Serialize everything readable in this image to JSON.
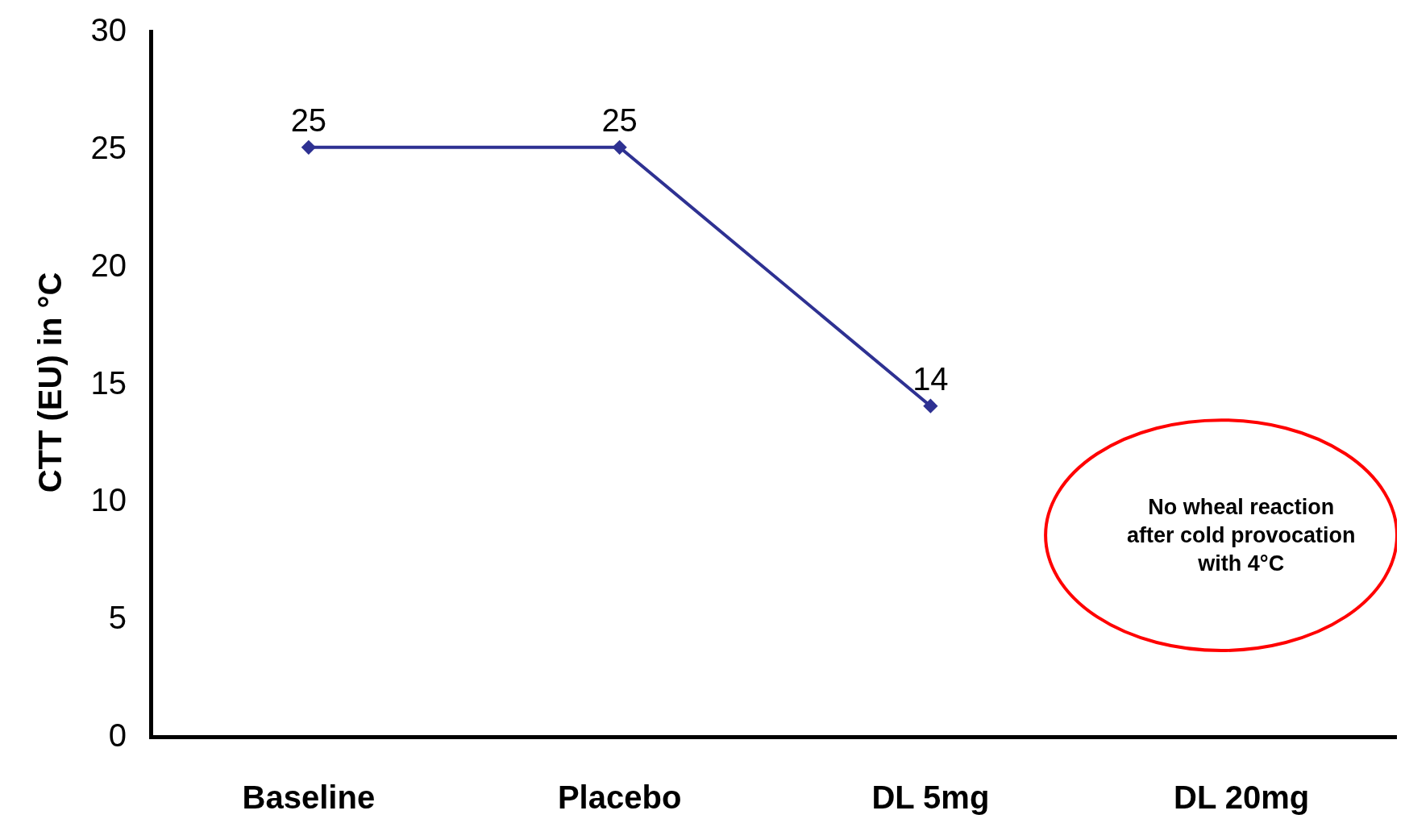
{
  "chart_data": {
    "type": "line",
    "ylabel": "CTT (EU) in °C",
    "categories": [
      "Baseline",
      "Placebo",
      "DL 5mg",
      "DL 20mg"
    ],
    "series": [
      {
        "color": "#2e3192",
        "values": [
          25,
          25,
          14,
          null
        ]
      }
    ],
    "ylim": [
      0,
      30
    ],
    "yticks": [
      0,
      5,
      10,
      15,
      20,
      25,
      30
    ],
    "data_labels": true,
    "marker": "diamond",
    "line_style": "solid",
    "annotations": [
      "No wheal reaction\nafter cold provocation\nwith 4°C"
    ]
  }
}
